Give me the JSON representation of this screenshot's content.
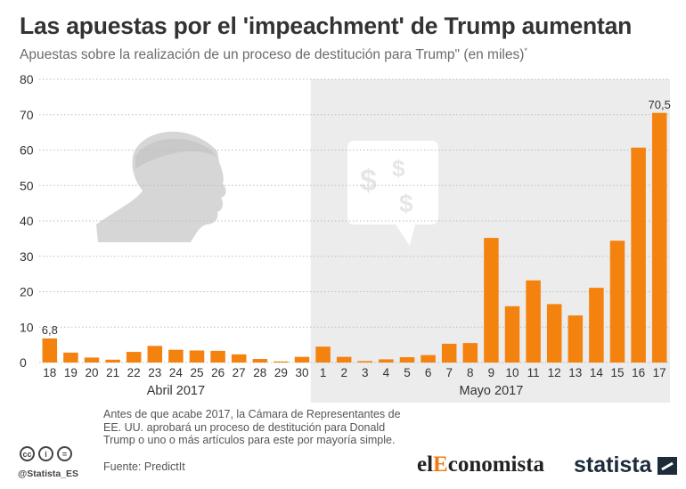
{
  "title": "Las apuestas por el 'impeachment' de Trump aumentan",
  "subtitle": "Apuestas sobre la realización de un proceso de destitución para Trump\" (en miles)",
  "subtitle_mark": "*",
  "footnote": "Antes de que acabe 2017, la Cámara de Representantes de EE. UU. aprobará un proceso de destitución para Donald Trump o uno o más artículos para este por mayoría simple.",
  "source": "Fuente: PredictIt",
  "handle": "@Statista_ES",
  "logos": {
    "eleconomista_prefix": "el",
    "eleconomista_accent": "E",
    "eleconomista_suffix": "conomista",
    "statista": "statista"
  },
  "cc_icons": [
    "cc",
    "i",
    "="
  ],
  "colors": {
    "bar": "#f4820f",
    "highlight_region": "#ececec",
    "decoration": "#d6d6d6"
  },
  "icons": {
    "left": "trump-silhouette-icon",
    "right": "dollar-speech-bubble-icon"
  },
  "chart_data": {
    "type": "bar",
    "categories": [
      "18",
      "19",
      "20",
      "21",
      "22",
      "23",
      "24",
      "25",
      "26",
      "27",
      "28",
      "29",
      "30",
      "1",
      "2",
      "3",
      "4",
      "5",
      "6",
      "7",
      "8",
      "9",
      "10",
      "11",
      "12",
      "13",
      "14",
      "15",
      "16",
      "17"
    ],
    "values": [
      6.8,
      2.8,
      1.4,
      0.8,
      3.0,
      4.7,
      3.6,
      3.4,
      3.3,
      2.3,
      1.0,
      0.3,
      1.6,
      4.5,
      1.6,
      0.4,
      0.9,
      1.5,
      2.1,
      5.3,
      5.5,
      35.2,
      15.9,
      23.2,
      16.5,
      13.3,
      21.1,
      34.4,
      60.7,
      70.5
    ],
    "value_labels": {
      "0": "6,8",
      "29": "70,5"
    },
    "groups": [
      {
        "label": "Abril 2017",
        "from": 0,
        "to": 12
      },
      {
        "label": "Mayo 2017",
        "from": 13,
        "to": 29
      }
    ],
    "highlight_group": 1,
    "y_ticks": [
      0,
      10,
      20,
      30,
      40,
      50,
      60,
      70,
      80
    ],
    "ylim": [
      0,
      80
    ],
    "grid": true,
    "legend": "none",
    "xlabel": "",
    "ylabel": ""
  }
}
